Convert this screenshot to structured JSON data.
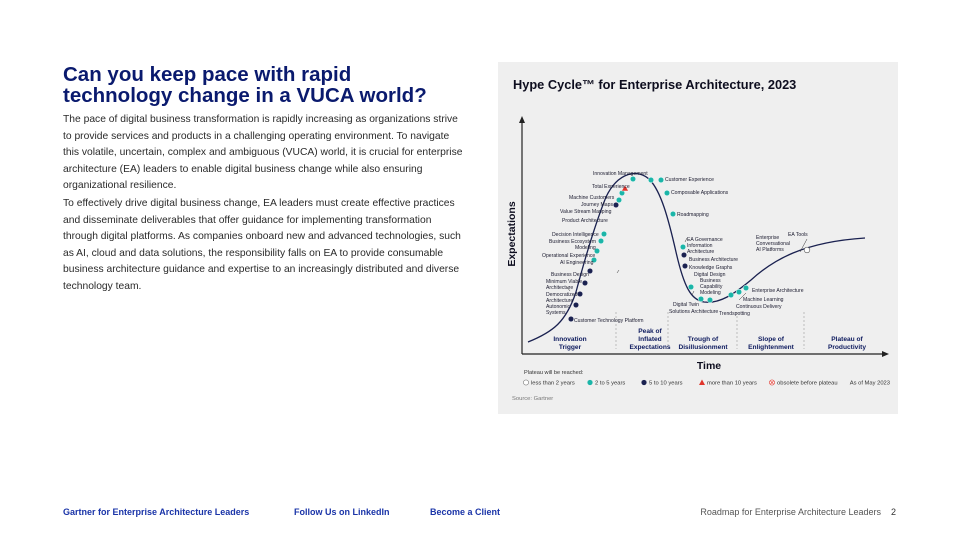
{
  "page": {
    "headline_line1": "Can you keep pace with rapid",
    "headline_line2": "technology change in a VUCA world?",
    "paragraph1": "The pace of digital business transformation is rapidly increasing as organizations strive to provide services and products in a challenging operating environment. To navigate this volatile, uncertain, complex and ambiguous (VUCA) world, it is crucial for enterprise architecture (EA) leaders to enable digital business change while also ensuring organizational resilience.",
    "paragraph2": "To effectively drive digital business change, EA leaders must create effective practices and disseminate deliverables that offer guidance for implementing transformation through digital platforms. As companies onboard new and advanced technologies, such as AI, cloud and data solutions, the responsibility falls on EA to provide consumable business architecture guidance and expertise to an increasingly distributed and diverse technology team."
  },
  "hype_cycle": {
    "title": "Hype Cycle™ for Enterprise Architecture, 2023",
    "y_axis_label": "Expectations",
    "x_axis_label": "Time",
    "phases": [
      {
        "line1": "Innovation",
        "line2": "Trigger"
      },
      {
        "line1": "Peak of",
        "line2": "Inflated",
        "line3": "Expectations"
      },
      {
        "line1": "Trough of",
        "line2": "Disillusionment"
      },
      {
        "line1": "Slope of",
        "line2": "Enlightenment"
      },
      {
        "line1": "Plateau of",
        "line2": "Productivity"
      }
    ],
    "legend_title": "Plateau will be reached:",
    "legend": [
      {
        "label": "less than 2 years",
        "color": "#ffffff",
        "shape": "circle-outline"
      },
      {
        "label": "2 to 5 years",
        "color": "#1bb5a8",
        "shape": "circle"
      },
      {
        "label": "5 to 10 years",
        "color": "#1a2150",
        "shape": "circle"
      },
      {
        "label": "more than 10 years",
        "color": "#e0342b",
        "shape": "triangle"
      },
      {
        "label": "obsolete before plateau",
        "color": "#e0342b",
        "shape": "x-circle"
      }
    ],
    "as_of": "As of May 2023",
    "source": "Source: Gartner",
    "labels": [
      "Innovation Management",
      "Customer Experience",
      "Total Experience",
      "Composable Applications",
      "Machine Customers",
      "Journey Maps",
      "Value Stream Mapping",
      "Roadmapping",
      "Product Architecture",
      "Decision Intelligence",
      "Business Ecosystem",
      "Modeling",
      "EA Governance",
      "Information",
      "Architecture",
      "Operational Experience",
      "AI Engineering",
      "Business Architecture",
      "Knowledge Graphs",
      "Business Design",
      "Digital Design",
      "Minimum Viable",
      "Architecture",
      "Business",
      "Capability",
      "Modeling",
      "Democratized",
      "Architecture",
      "Autonomic",
      "Systems",
      "Digital Twin",
      "Solutions Architecture",
      "Customer Technology Platform",
      "Enterprise",
      "Conversational",
      "AI Platforms",
      "EA Tools",
      "Enterprise Architecture",
      "Machine Learning",
      "Continuous Delivery",
      "Trendspotting"
    ]
  },
  "footer": {
    "link1": "Gartner for Enterprise Architecture Leaders",
    "link2": "Follow Us on LinkedIn",
    "link3": "Become a Client",
    "doc_title": "Roadmap for Enterprise Architecture Leaders",
    "page_number": "2"
  }
}
